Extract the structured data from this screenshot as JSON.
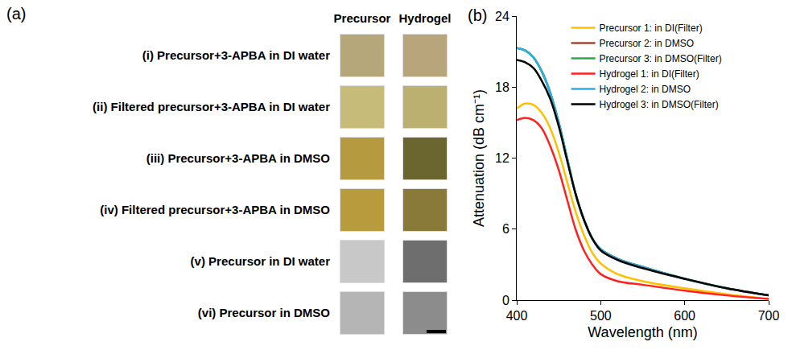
{
  "swatches": {
    "label": "(a)",
    "column_heads": [
      "Precursor",
      "Hydrogel"
    ],
    "rows": [
      {
        "label": "(i) Precursor+3-APBA in DI water",
        "colors": [
          "#b5a77a",
          "#b8a57c"
        ]
      },
      {
        "label": "(ii) Filtered precursor+3-APBA in DI water",
        "colors": [
          "#c7bb7a",
          "#bcb070"
        ]
      },
      {
        "label": "(iii) Precursor+3-APBA in DMSO",
        "colors": [
          "#b59a3f",
          "#6b6530"
        ]
      },
      {
        "label": "(iv) Filtered precursor+3-APBA in DMSO",
        "colors": [
          "#b89b3d",
          "#8a7a3a"
        ]
      },
      {
        "label": "(v) Precursor in DI water",
        "colors": [
          "#c8c8c8",
          "#6e6e6e"
        ]
      },
      {
        "label": "(vi) Precursor in DMSO",
        "colors": [
          "#b5b5b5",
          "#8c8c8c"
        ]
      }
    ]
  },
  "chart_data": {
    "type": "line",
    "title": "(b)",
    "x_label": "Wavelength (nm)",
    "y_label": "Attenuation (dB cm⁻¹)",
    "x": [
      400,
      410,
      420,
      430,
      440,
      450,
      460,
      470,
      480,
      490,
      500,
      520,
      550,
      600,
      650,
      700
    ],
    "series": [
      {
        "name": "Precursor 1: in DI(Filter)",
        "color": "#ffc000",
        "values": [
          16.2,
          16.6,
          16.5,
          15.8,
          14.5,
          12.5,
          10.0,
          7.5,
          5.5,
          4.0,
          3.1,
          2.2,
          1.6,
          1.0,
          0.5,
          0.1
        ]
      },
      {
        "name": "Precursor 2: in DMSO",
        "color": "#a0483a",
        "values": [
          21.3,
          21.1,
          20.5,
          19.3,
          17.5,
          15.0,
          12.0,
          9.0,
          6.8,
          5.2,
          4.3,
          3.5,
          2.8,
          1.8,
          1.0,
          0.4
        ]
      },
      {
        "name": "Precursor 3: in DMSO(Filter)",
        "color": "#2aa84a",
        "values": [
          21.3,
          21.1,
          20.5,
          19.3,
          17.5,
          15.0,
          12.0,
          9.0,
          6.8,
          5.2,
          4.3,
          3.5,
          2.8,
          1.8,
          1.0,
          0.4
        ]
      },
      {
        "name": "Hydrogel 1: in DI(Filter)",
        "color": "#ff2020",
        "values": [
          15.2,
          15.4,
          15.2,
          14.5,
          13.0,
          11.0,
          8.5,
          6.0,
          4.2,
          3.0,
          2.2,
          1.6,
          1.3,
          0.8,
          0.4,
          0.1
        ]
      },
      {
        "name": "Hydrogel 2: in DMSO",
        "color": "#2ab0e0",
        "values": [
          21.3,
          21.1,
          20.5,
          19.3,
          17.5,
          15.0,
          12.0,
          9.0,
          6.8,
          5.2,
          4.3,
          3.5,
          2.8,
          1.8,
          1.0,
          0.4
        ]
      },
      {
        "name": "Hydrogel 3: in DMSO(Filter)",
        "color": "#000000",
        "values": [
          20.3,
          20.1,
          19.6,
          18.5,
          17.0,
          14.7,
          11.8,
          9.0,
          6.8,
          5.2,
          4.2,
          3.4,
          2.7,
          1.8,
          1.0,
          0.4
        ]
      }
    ],
    "xlim": [
      400,
      700
    ],
    "xticks": [
      400,
      500,
      600,
      700
    ],
    "ylim": [
      0,
      24
    ],
    "yticks": [
      0,
      6,
      12,
      18,
      24
    ],
    "grid": false,
    "legend": "upper right"
  }
}
